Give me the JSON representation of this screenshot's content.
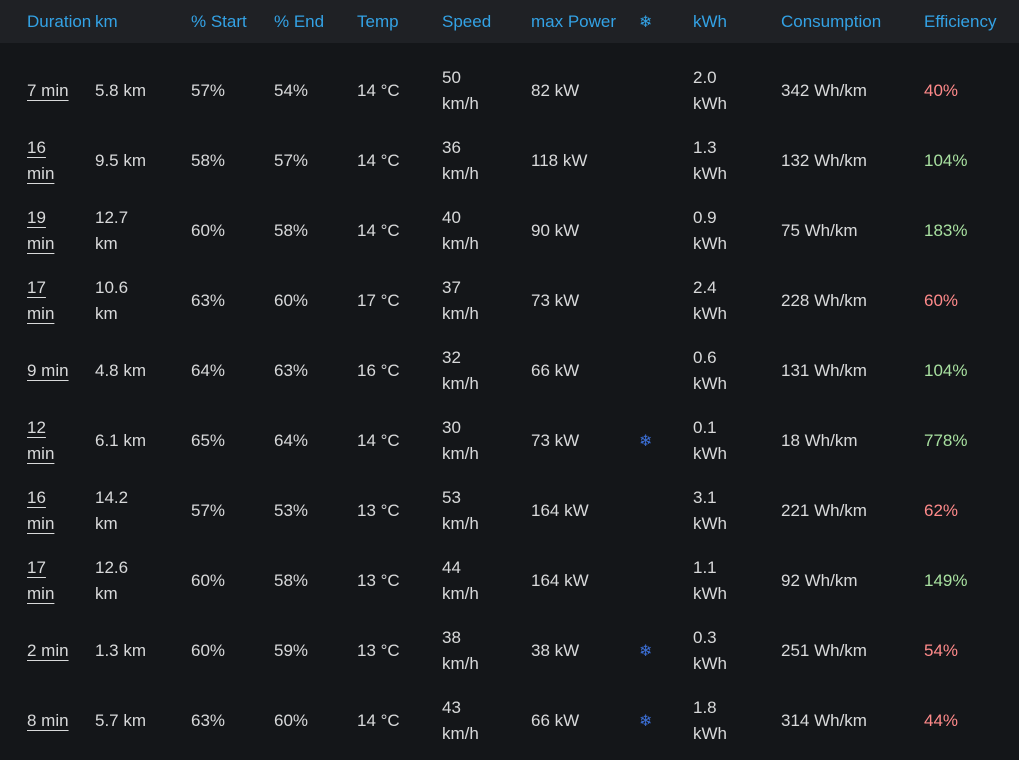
{
  "columns": {
    "duration": "Duration",
    "km": "km",
    "start": "% Start",
    "end": "% End",
    "temp": "Temp",
    "speed": "Speed",
    "max_power": "max Power",
    "climate_icon": "❄",
    "kwh": "kWh",
    "consumption": "Consumption",
    "efficiency": "Efficiency"
  },
  "colors": {
    "header_text": "#33a2e5",
    "efficiency_good": "#a8e0a0",
    "efficiency_bad": "#ff8a8a",
    "climate_icon": "#3d71d9"
  },
  "rows": [
    {
      "duration": "7 min",
      "km": "5.8 km",
      "start": "57%",
      "end": "54%",
      "temp": "14 °C",
      "speed": "50 km/h",
      "max_power": "82 kW",
      "climate": "",
      "kwh": "2.0 kWh",
      "consumption": "342 Wh/km",
      "efficiency": "40%",
      "eff_status": "bad"
    },
    {
      "duration": "16 min",
      "km": "9.5 km",
      "start": "58%",
      "end": "57%",
      "temp": "14 °C",
      "speed": "36 km/h",
      "max_power": "118 kW",
      "climate": "",
      "kwh": "1.3 kWh",
      "consumption": "132 Wh/km",
      "efficiency": "104%",
      "eff_status": "good"
    },
    {
      "duration": "19 min",
      "km": "12.7 km",
      "start": "60%",
      "end": "58%",
      "temp": "14 °C",
      "speed": "40 km/h",
      "max_power": "90 kW",
      "climate": "",
      "kwh": "0.9 kWh",
      "consumption": "75 Wh/km",
      "efficiency": "183%",
      "eff_status": "good"
    },
    {
      "duration": "17 min",
      "km": "10.6 km",
      "start": "63%",
      "end": "60%",
      "temp": "17 °C",
      "speed": "37 km/h",
      "max_power": "73 kW",
      "climate": "",
      "kwh": "2.4 kWh",
      "consumption": "228 Wh/km",
      "efficiency": "60%",
      "eff_status": "bad"
    },
    {
      "duration": "9 min",
      "km": "4.8 km",
      "start": "64%",
      "end": "63%",
      "temp": "16 °C",
      "speed": "32 km/h",
      "max_power": "66 kW",
      "climate": "",
      "kwh": "0.6 kWh",
      "consumption": "131 Wh/km",
      "efficiency": "104%",
      "eff_status": "good"
    },
    {
      "duration": "12 min",
      "km": "6.1 km",
      "start": "65%",
      "end": "64%",
      "temp": "14 °C",
      "speed": "30 km/h",
      "max_power": "73 kW",
      "climate": "❄",
      "kwh": "0.1 kWh",
      "consumption": "18 Wh/km",
      "efficiency": "778%",
      "eff_status": "good"
    },
    {
      "duration": "16 min",
      "km": "14.2 km",
      "start": "57%",
      "end": "53%",
      "temp": "13 °C",
      "speed": "53 km/h",
      "max_power": "164 kW",
      "climate": "",
      "kwh": "3.1 kWh",
      "consumption": "221 Wh/km",
      "efficiency": "62%",
      "eff_status": "bad"
    },
    {
      "duration": "17 min",
      "km": "12.6 km",
      "start": "60%",
      "end": "58%",
      "temp": "13 °C",
      "speed": "44 km/h",
      "max_power": "164 kW",
      "climate": "",
      "kwh": "1.1 kWh",
      "consumption": "92 Wh/km",
      "efficiency": "149%",
      "eff_status": "good"
    },
    {
      "duration": "2 min",
      "km": "1.3 km",
      "start": "60%",
      "end": "59%",
      "temp": "13 °C",
      "speed": "38 km/h",
      "max_power": "38 kW",
      "climate": "❄",
      "kwh": "0.3 kWh",
      "consumption": "251 Wh/km",
      "efficiency": "54%",
      "eff_status": "bad"
    },
    {
      "duration": "8 min",
      "km": "5.7 km",
      "start": "63%",
      "end": "60%",
      "temp": "14 °C",
      "speed": "43 km/h",
      "max_power": "66 kW",
      "climate": "❄",
      "kwh": "1.8 kWh",
      "consumption": "314 Wh/km",
      "efficiency": "44%",
      "eff_status": "bad"
    }
  ]
}
